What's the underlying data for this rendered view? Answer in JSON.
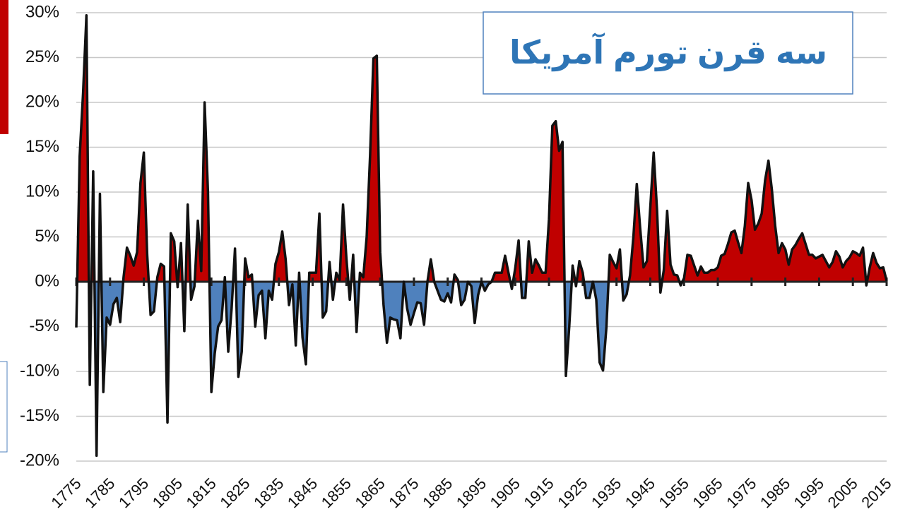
{
  "chart_data": {
    "type": "area-line",
    "title": "سه قرن تورم آمریکا",
    "x": [
      1775,
      1776,
      1777,
      1778,
      1779,
      1780,
      1781,
      1782,
      1783,
      1784,
      1785,
      1786,
      1787,
      1788,
      1789,
      1790,
      1791,
      1792,
      1793,
      1794,
      1795,
      1796,
      1797,
      1798,
      1799,
      1800,
      1801,
      1802,
      1803,
      1804,
      1805,
      1806,
      1807,
      1808,
      1809,
      1810,
      1811,
      1812,
      1813,
      1814,
      1815,
      1816,
      1817,
      1818,
      1819,
      1820,
      1821,
      1822,
      1823,
      1824,
      1825,
      1826,
      1827,
      1828,
      1829,
      1830,
      1831,
      1832,
      1833,
      1834,
      1835,
      1836,
      1837,
      1838,
      1839,
      1840,
      1841,
      1842,
      1843,
      1844,
      1845,
      1846,
      1847,
      1848,
      1849,
      1850,
      1851,
      1852,
      1853,
      1854,
      1855,
      1856,
      1857,
      1858,
      1859,
      1860,
      1861,
      1862,
      1863,
      1864,
      1865,
      1866,
      1867,
      1868,
      1869,
      1870,
      1871,
      1872,
      1873,
      1874,
      1875,
      1876,
      1877,
      1878,
      1879,
      1880,
      1881,
      1882,
      1883,
      1884,
      1885,
      1886,
      1887,
      1888,
      1889,
      1890,
      1891,
      1892,
      1893,
      1894,
      1895,
      1896,
      1897,
      1898,
      1899,
      1900,
      1901,
      1902,
      1903,
      1904,
      1905,
      1906,
      1907,
      1908,
      1909,
      1910,
      1911,
      1912,
      1913,
      1914,
      1915,
      1916,
      1917,
      1918,
      1919,
      1920,
      1921,
      1922,
      1923,
      1924,
      1925,
      1926,
      1927,
      1928,
      1929,
      1930,
      1931,
      1932,
      1933,
      1934,
      1935,
      1936,
      1937,
      1938,
      1939,
      1940,
      1941,
      1942,
      1943,
      1944,
      1945,
      1946,
      1947,
      1948,
      1949,
      1950,
      1951,
      1952,
      1953,
      1954,
      1955,
      1956,
      1957,
      1958,
      1959,
      1960,
      1961,
      1962,
      1963,
      1964,
      1965,
      1966,
      1967,
      1968,
      1969,
      1970,
      1971,
      1972,
      1973,
      1974,
      1975,
      1976,
      1977,
      1978,
      1979,
      1980,
      1981,
      1982,
      1983,
      1984,
      1985,
      1986,
      1987,
      1988,
      1989,
      1990,
      1991,
      1992,
      1993,
      1994,
      1995,
      1996,
      1997,
      1998,
      1999,
      2000,
      2001,
      2002,
      2003,
      2004,
      2005,
      2006,
      2007,
      2008,
      2009,
      2010,
      2011,
      2012,
      2013,
      2014,
      2015
    ],
    "values": [
      -5.1,
      14,
      21,
      29.7,
      -11.5,
      12.3,
      -19.4,
      9.8,
      -12.3,
      -4,
      -4.8,
      -2.5,
      -1.8,
      -4.5,
      0.5,
      3.8,
      2.9,
      1.8,
      3.3,
      11,
      14.4,
      3,
      -3.7,
      -3.3,
      0.5,
      2,
      1.7,
      -15.7,
      5.4,
      4.5,
      -0.6,
      4.3,
      -5.5,
      8.6,
      -2,
      -0.5,
      6.8,
      1.2,
      20,
      10,
      -12.3,
      -8,
      -5,
      -4.3,
      0.5,
      -7.8,
      -3,
      3.7,
      -10.6,
      -7.8,
      2.6,
      0.5,
      0.8,
      -5,
      -1.5,
      -1,
      -6.3,
      -1,
      -2,
      2,
      3.3,
      5.6,
      2.5,
      -2.6,
      -0.3,
      -7.1,
      1,
      -6.2,
      -9.2,
      1,
      1,
      1,
      7.6,
      -4,
      -3.3,
      2.2,
      -2,
      1,
      0.2,
      8.6,
      2.6,
      -2,
      3,
      -5.6,
      1,
      0.5,
      5,
      14,
      24.9,
      25.2,
      3.3,
      -2.6,
      -6.8,
      -4,
      -4.2,
      -4.3,
      -6.3,
      0,
      -3,
      -4.8,
      -3.5,
      -2.3,
      -2.4,
      -4.8,
      0,
      2.5,
      0,
      -1,
      -2,
      -2.2,
      -1.3,
      -2.3,
      0.8,
      0.2,
      -2.6,
      -2,
      0,
      -0.5,
      -4.6,
      -1.5,
      0,
      -1,
      -0.3,
      0,
      1,
      1,
      1,
      2.9,
      1,
      -0.8,
      1.5,
      4.6,
      -1.8,
      -1.8,
      4.5,
      1,
      2.5,
      1.8,
      1,
      1,
      7,
      17.4,
      17.9,
      14.6,
      15.6,
      -10.5,
      -5,
      1.8,
      -0.5,
      2.3,
      1,
      -1.8,
      -1.8,
      0,
      -2,
      -9,
      -9.9,
      -5.1,
      3,
      2.2,
      1.5,
      3.6,
      -2.1,
      -1.4,
      0.7,
      5,
      10.9,
      6,
      1.6,
      2.3,
      8.3,
      14.4,
      8,
      -1.2,
      1.3,
      7.9,
      1.9,
      0.8,
      0.7,
      -0.4,
      0.4,
      3,
      2.9,
      1.8,
      0.7,
      1.7,
      1,
      1,
      1.3,
      1.3,
      1.6,
      2.9,
      3.1,
      4.2,
      5.5,
      5.7,
      4.4,
      3.2,
      6.2,
      11,
      9.1,
      5.8,
      6.5,
      7.6,
      11.3,
      13.5,
      10.3,
      6.2,
      3.2,
      4.3,
      3.6,
      1.9,
      3.6,
      4.1,
      4.8,
      5.4,
      4.2,
      3,
      3,
      2.6,
      2.8,
      3,
      2.3,
      1.6,
      2.2,
      3.4,
      2.8,
      1.6,
      2.3,
      2.7,
      3.4,
      3.2,
      2.9,
      3.8,
      -0.4,
      1.6,
      3.2,
      2.1,
      1.5,
      1.6,
      0.1
    ],
    "positive_color": "#c00000",
    "negative_color": "#4f81bd",
    "line_color": "#111111",
    "xlim": [
      1775,
      2015
    ],
    "xticks": [
      1775,
      1785,
      1795,
      1805,
      1815,
      1825,
      1835,
      1845,
      1855,
      1865,
      1875,
      1885,
      1895,
      1905,
      1915,
      1925,
      1935,
      1945,
      1955,
      1965,
      1975,
      1985,
      1995,
      2005,
      2015
    ],
    "ylim": [
      -20,
      30
    ],
    "yticks": [
      {
        "value": -20,
        "label": "-20%"
      },
      {
        "value": -15,
        "label": "-15%"
      },
      {
        "value": -10,
        "label": "-10%"
      },
      {
        "value": -5,
        "label": "-5%"
      },
      {
        "value": 0,
        "label": "0%"
      },
      {
        "value": 5,
        "label": "5%"
      },
      {
        "value": 10,
        "label": "10%"
      },
      {
        "value": 15,
        "label": "15%"
      },
      {
        "value": 20,
        "label": "20%"
      },
      {
        "value": 25,
        "label": "25%"
      },
      {
        "value": 30,
        "label": "30%"
      }
    ],
    "grid": true
  }
}
